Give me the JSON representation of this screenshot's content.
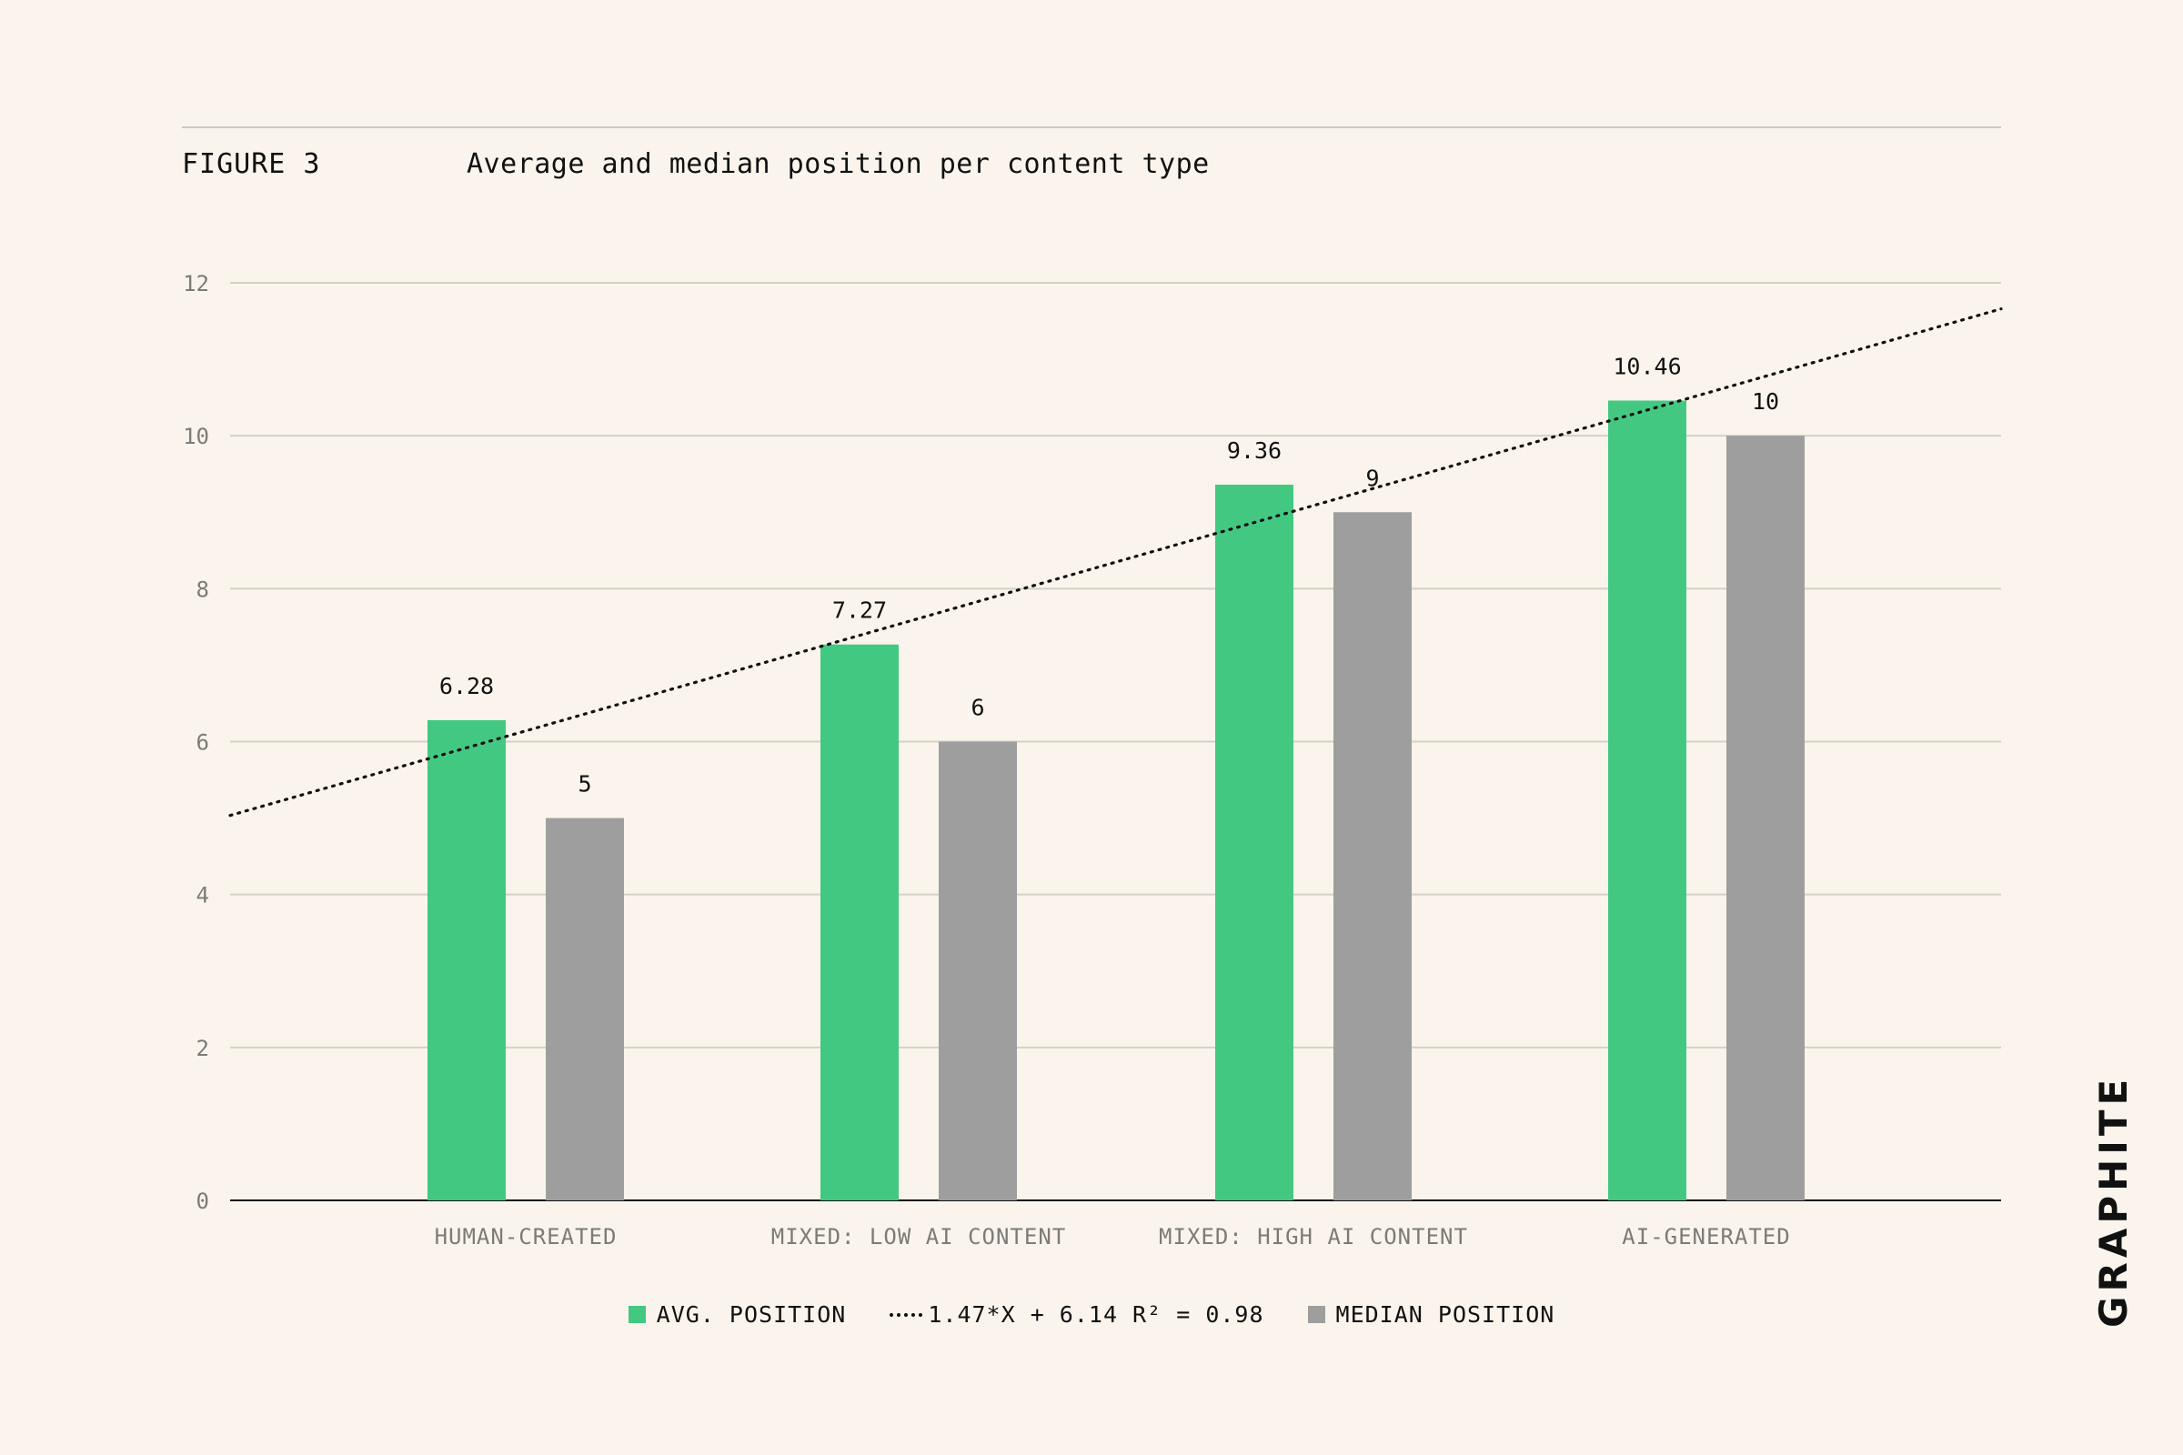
{
  "header": {
    "figure_label": "FIGURE 3",
    "title": "Average and median position per content type"
  },
  "chart_data": {
    "type": "bar",
    "categories": [
      "HUMAN-CREATED",
      "MIXED: LOW AI CONTENT",
      "MIXED: HIGH AI CONTENT",
      "AI-GENERATED"
    ],
    "series": [
      {
        "name": "AVG. POSITION",
        "values": [
          6.28,
          7.27,
          9.36,
          10.46
        ],
        "labels": [
          "6.28",
          "7.27",
          "9.36",
          "10.46"
        ],
        "color": "#43C882"
      },
      {
        "name": "MEDIAN POSITION",
        "values": [
          5,
          6,
          9,
          10
        ],
        "labels": [
          "5",
          "6",
          "9",
          "10"
        ],
        "color": "#9E9E9E"
      }
    ],
    "trendline": {
      "label": "1.47*X + 6.14 R² = 0.98",
      "slope": 1.47,
      "intercept": 6.14,
      "style": "dotted",
      "color": "#111111"
    },
    "yticks": [
      "0",
      "2",
      "4",
      "6",
      "8",
      "10",
      "12"
    ],
    "ylim": [
      0,
      12
    ],
    "grid": true,
    "legend_position": "bottom-center"
  },
  "legend": {
    "avg_label": "AVG. POSITION",
    "trend_label": "1.47*X + 6.14 R² = 0.98",
    "median_label": "MEDIAN POSITION"
  },
  "brand": {
    "name": "GRAPHITE"
  }
}
